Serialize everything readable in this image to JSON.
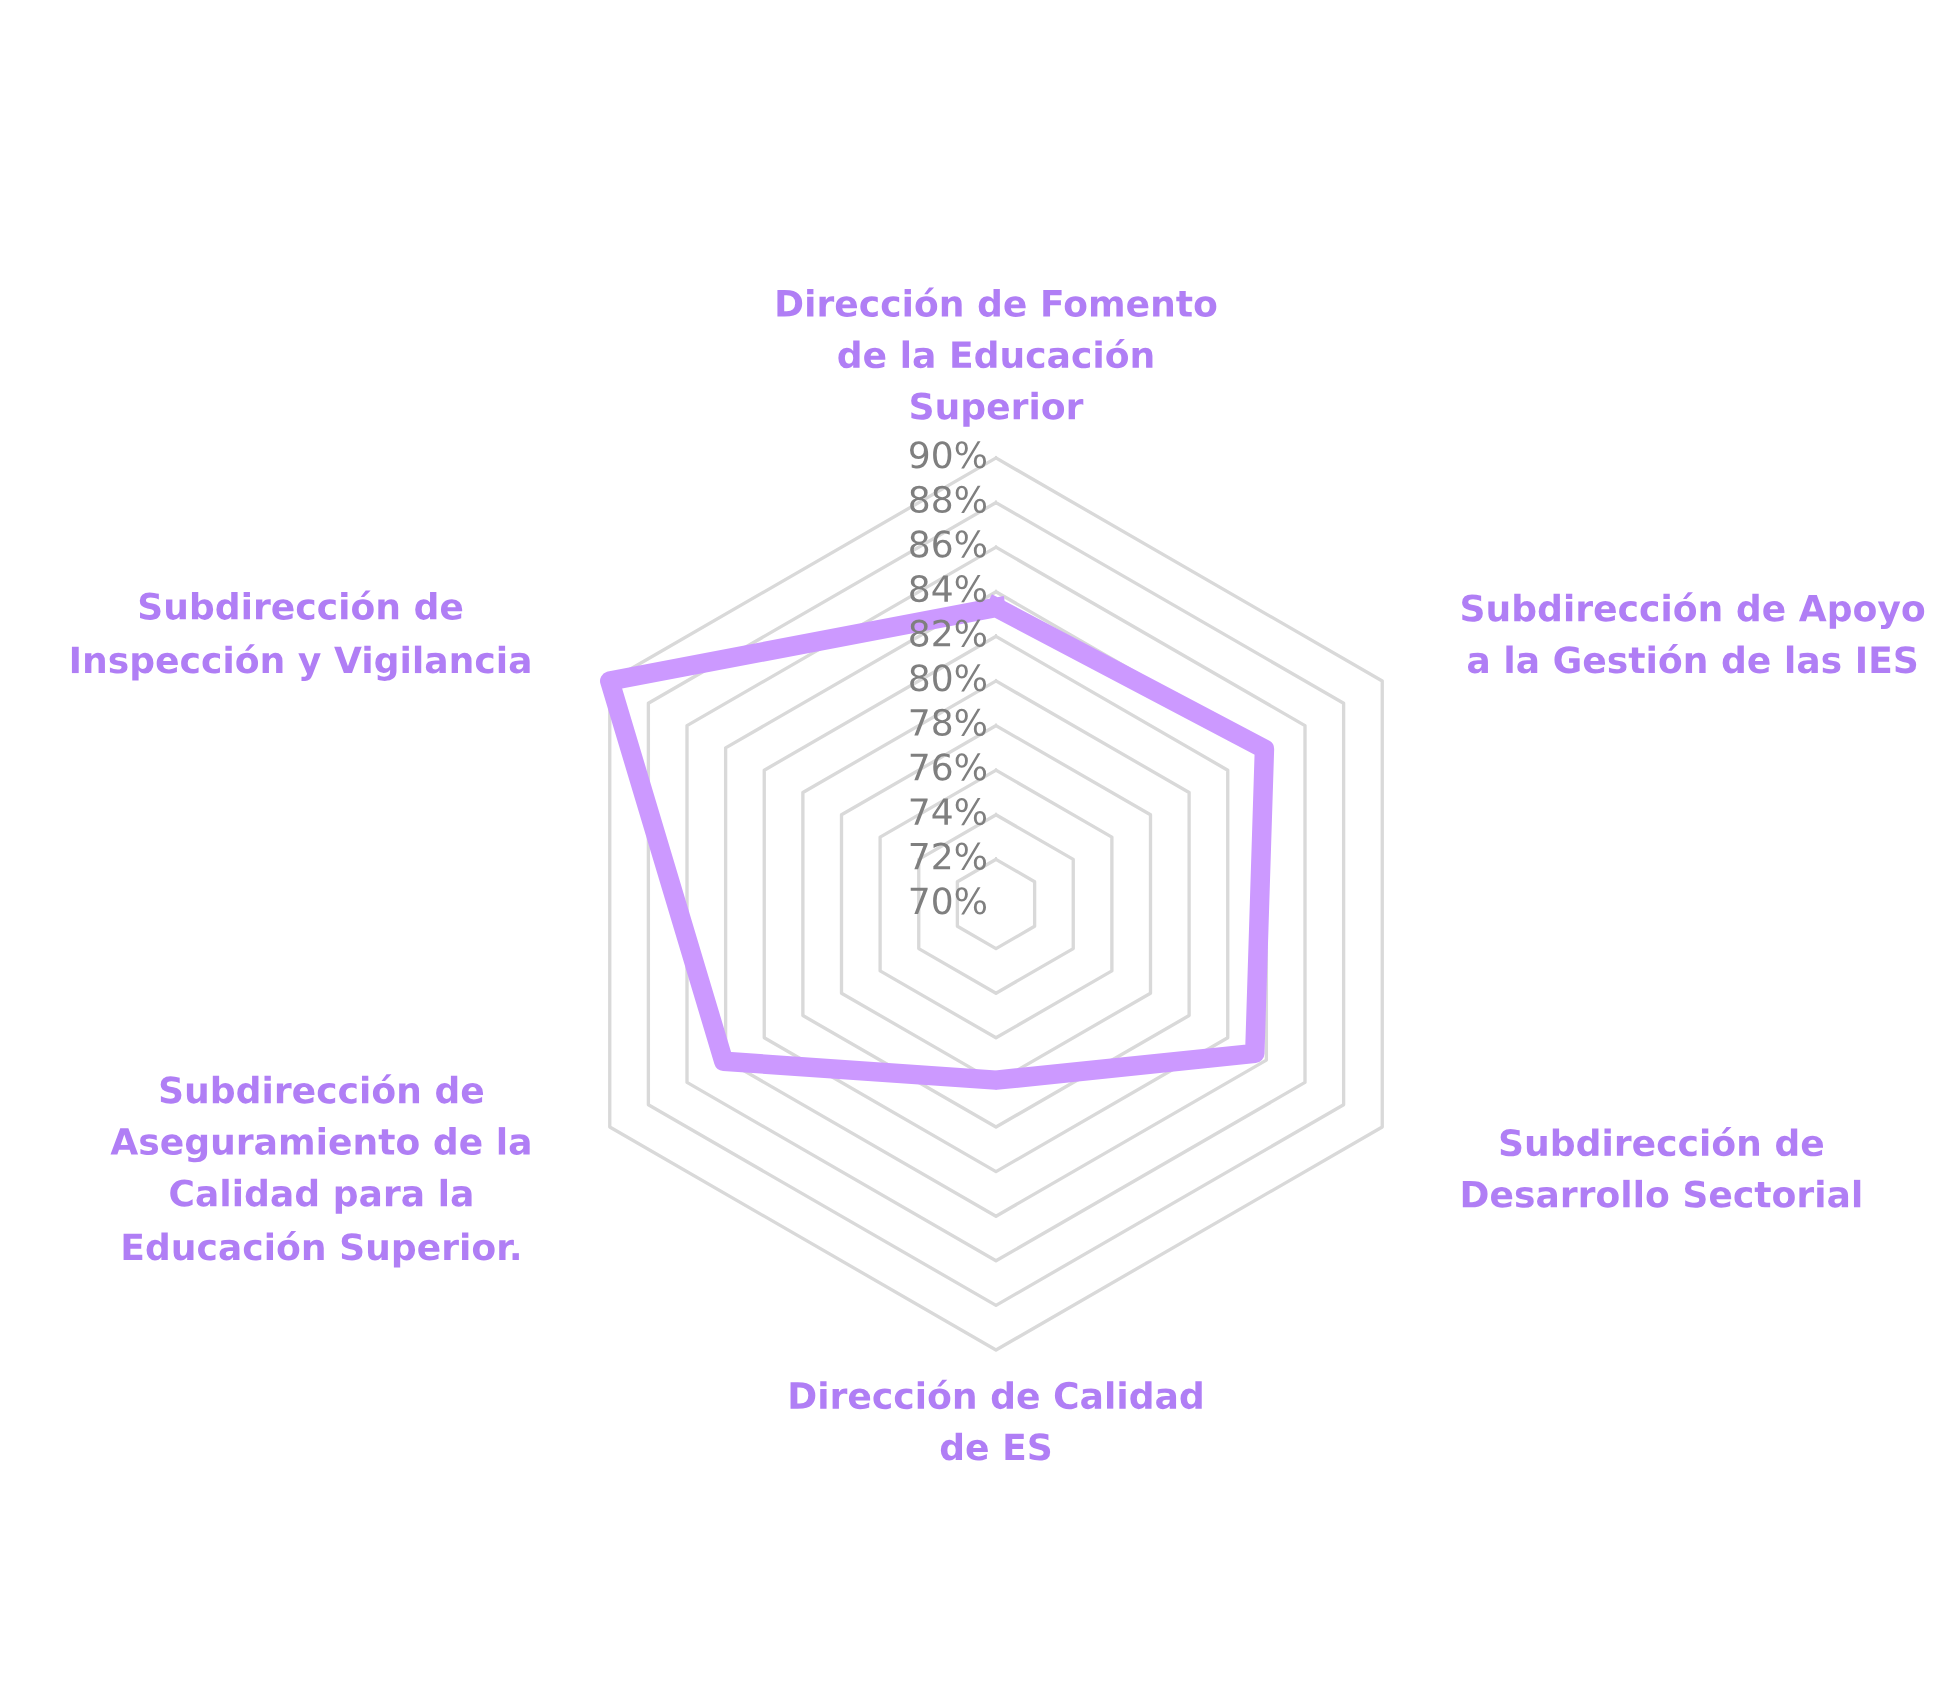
{
  "chart_data": {
    "type": "radar",
    "categories": [
      "Dirección de Fomento\nde la Educación\nSuperior",
      "Subdirección de Apoyo\na la Gestión de las IES",
      "Subdirección de\nDesarrollo Sectorial",
      "Dirección de Calidad\nde ES",
      "Subdirección de\nAseguramiento de la\nCalidad para la\nEducación Superior.",
      "Subdirección de\nInspección y Vigilancia"
    ],
    "series": [
      {
        "color": "#cc99ff",
        "values": [
          0.833,
          0.839,
          0.834,
          0.779,
          0.841,
          0.9
        ]
      }
    ],
    "ylim": [
      0.7,
      0.9
    ],
    "yticks": [
      {
        "value": 0.7,
        "label": "70%"
      },
      {
        "value": 0.72,
        "label": "72%"
      },
      {
        "value": 0.74,
        "label": "74%"
      },
      {
        "value": 0.76,
        "label": "76%"
      },
      {
        "value": 0.78,
        "label": "78%"
      },
      {
        "value": 0.8,
        "label": "80%"
      },
      {
        "value": 0.82,
        "label": "82%"
      },
      {
        "value": 0.84,
        "label": "84%"
      },
      {
        "value": 0.86,
        "label": "86%"
      },
      {
        "value": 0.88,
        "label": "88%"
      },
      {
        "value": 0.9,
        "label": "90%"
      }
    ],
    "grid": true,
    "legend": false,
    "marker": "none"
  }
}
